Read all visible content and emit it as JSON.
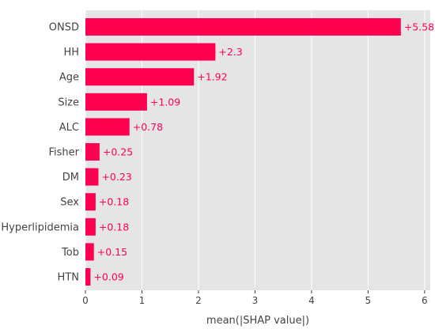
{
  "chart_data": {
    "type": "bar",
    "orientation": "horizontal",
    "categories": [
      "ONSD",
      "HH",
      "Age",
      "Size",
      "ALC",
      "Fisher",
      "DM",
      "Sex",
      "Hyperlipidemia",
      "Tob",
      "HTN"
    ],
    "values": [
      5.58,
      2.3,
      1.92,
      1.09,
      0.78,
      0.25,
      0.23,
      0.18,
      0.18,
      0.15,
      0.09
    ],
    "value_labels": [
      "+5.58",
      "+2.3",
      "+1.92",
      "+1.09",
      "+0.78",
      "+0.25",
      "+0.23",
      "+0.18",
      "+0.18",
      "+0.15",
      "+0.09"
    ],
    "xlabel": "mean(|SHAP value|)",
    "ylabel": "",
    "xlim": [
      0,
      6.1
    ],
    "xticks": [
      0,
      1,
      2,
      3,
      4,
      5,
      6
    ],
    "xtick_labels": [
      "0",
      "1",
      "2",
      "3",
      "4",
      "5",
      "6"
    ],
    "grid": true,
    "legend": "none"
  },
  "colors": {
    "bar": "#ff0051",
    "value_label": "#ff0051",
    "plot_background": "#e5e5e5",
    "grid": "#ffffff",
    "text": "#444444",
    "axis": "#333333"
  }
}
